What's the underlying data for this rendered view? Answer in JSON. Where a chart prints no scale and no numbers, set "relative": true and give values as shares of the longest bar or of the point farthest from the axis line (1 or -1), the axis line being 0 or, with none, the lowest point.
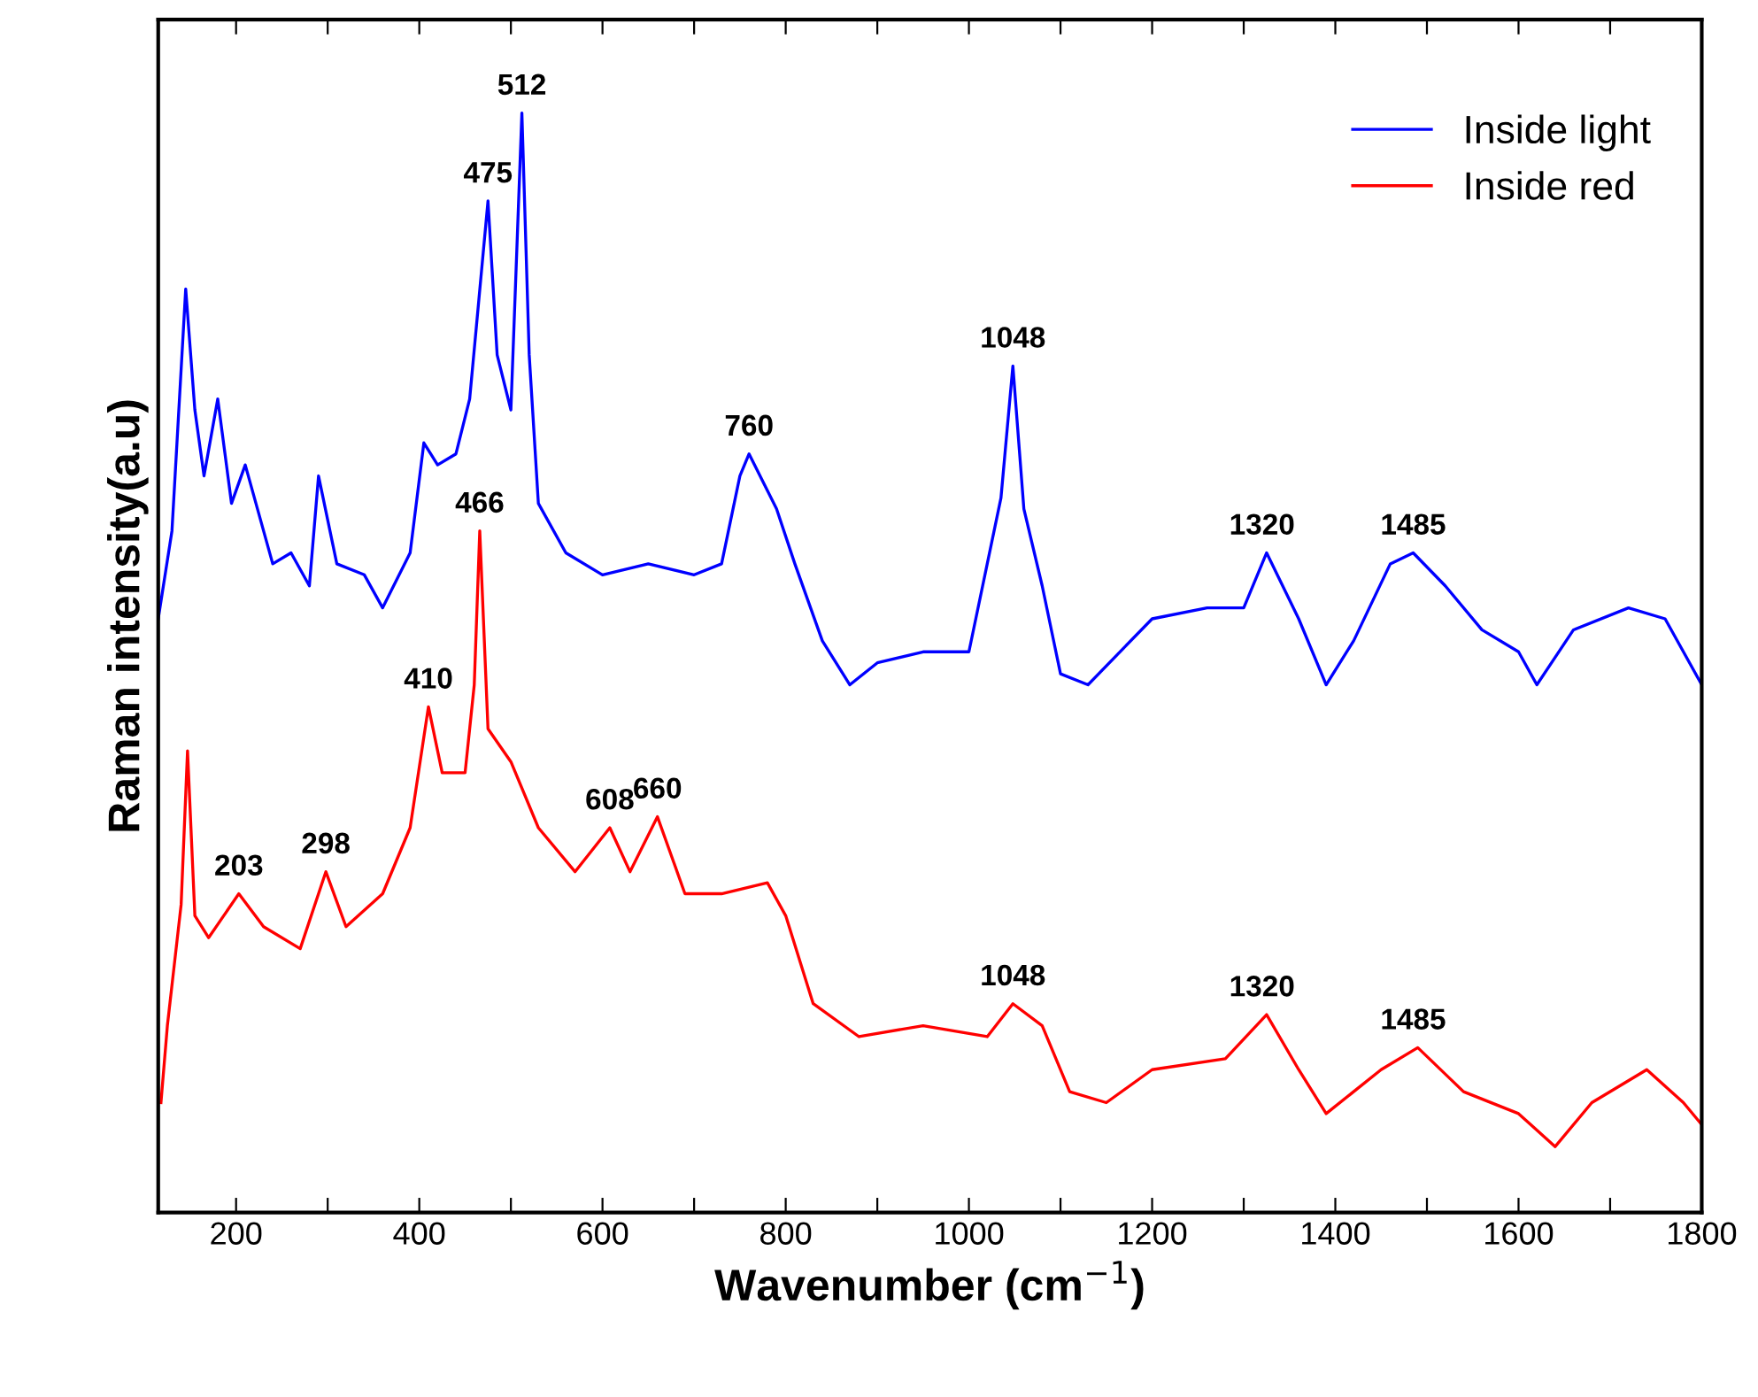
{
  "chart_data": {
    "type": "line",
    "relative": true,
    "xlabel": "Wavenumber (cm$^{−1}$)",
    "ylabel": "Raman intensity(a.u)",
    "xlim": [
      115,
      1800
    ],
    "xticks": [
      200,
      {
        "value": 300,
        "label": null
      },
      400,
      {
        "value": 500,
        "label": null
      },
      600,
      {
        "value": 700,
        "label": null
      },
      800,
      {
        "value": 900,
        "label": null
      },
      1000,
      {
        "value": 1100,
        "label": null
      },
      1200,
      {
        "value": 1300,
        "label": null
      },
      1400,
      {
        "value": 1500,
        "label": null
      },
      1600,
      {
        "value": 1700,
        "label": null
      },
      1800
    ],
    "legend": "top right",
    "grid": false,
    "series": [
      {
        "name": "Inside light",
        "color": "#0000ff",
        "x": [
          115,
          130,
          145,
          155,
          165,
          180,
          195,
          210,
          240,
          260,
          280,
          290,
          310,
          340,
          360,
          390,
          405,
          420,
          440,
          455,
          465,
          475,
          485,
          500,
          512,
          520,
          530,
          560,
          600,
          650,
          700,
          730,
          750,
          760,
          790,
          810,
          840,
          870,
          900,
          950,
          1000,
          1020,
          1035,
          1048,
          1060,
          1080,
          1100,
          1130,
          1200,
          1260,
          1300,
          1325,
          1360,
          1390,
          1420,
          1460,
          1485,
          1520,
          1560,
          1600,
          1620,
          1660,
          1720,
          1760,
          1800
        ],
        "values": [
          0.54,
          0.62,
          0.84,
          0.73,
          0.67,
          0.74,
          0.645,
          0.68,
          0.59,
          0.6,
          0.57,
          0.67,
          0.59,
          0.58,
          0.55,
          0.6,
          0.7,
          0.68,
          0.69,
          0.74,
          0.83,
          0.92,
          0.78,
          0.73,
          1.0,
          0.78,
          0.645,
          0.6,
          0.58,
          0.59,
          0.58,
          0.59,
          0.67,
          0.69,
          0.64,
          0.59,
          0.52,
          0.48,
          0.5,
          0.51,
          0.51,
          0.59,
          0.65,
          0.77,
          0.64,
          0.57,
          0.49,
          0.48,
          0.54,
          0.55,
          0.55,
          0.6,
          0.54,
          0.48,
          0.52,
          0.59,
          0.6,
          0.57,
          0.53,
          0.51,
          0.48,
          0.53,
          0.55,
          0.54,
          0.48
        ]
      },
      {
        "name": "Inside red",
        "color": "#ff0000",
        "x": [
          118,
          125,
          140,
          147,
          155,
          170,
          203,
          230,
          270,
          298,
          320,
          360,
          390,
          410,
          425,
          450,
          460,
          466,
          475,
          500,
          530,
          570,
          608,
          630,
          660,
          690,
          730,
          780,
          800,
          830,
          880,
          950,
          1020,
          1048,
          1080,
          1110,
          1150,
          1200,
          1280,
          1325,
          1360,
          1390,
          1450,
          1490,
          1540,
          1600,
          1640,
          1680,
          1740,
          1780,
          1800
        ],
        "values": [
          0.1,
          0.17,
          0.28,
          0.42,
          0.27,
          0.25,
          0.29,
          0.26,
          0.24,
          0.31,
          0.26,
          0.29,
          0.35,
          0.46,
          0.4,
          0.4,
          0.48,
          0.62,
          0.44,
          0.41,
          0.35,
          0.31,
          0.35,
          0.31,
          0.36,
          0.29,
          0.29,
          0.3,
          0.27,
          0.19,
          0.16,
          0.17,
          0.16,
          0.19,
          0.17,
          0.11,
          0.1,
          0.13,
          0.14,
          0.18,
          0.13,
          0.09,
          0.13,
          0.15,
          0.11,
          0.09,
          0.06,
          0.1,
          0.13,
          0.1,
          0.08
        ]
      }
    ],
    "annotations": [
      {
        "text": "512",
        "x": 512,
        "y": 1.0
      },
      {
        "text": "475",
        "x": 475,
        "y": 0.92
      },
      {
        "text": "760",
        "x": 760,
        "y": 0.69
      },
      {
        "text": "1048",
        "x": 1048,
        "y": 0.77
      },
      {
        "text": "1320",
        "x": 1320,
        "y": 0.6
      },
      {
        "text": "1485",
        "x": 1485,
        "y": 0.6
      },
      {
        "text": "466",
        "x": 466,
        "y": 0.62
      },
      {
        "text": "410",
        "x": 410,
        "y": 0.46
      },
      {
        "text": "203",
        "x": 203,
        "y": 0.29
      },
      {
        "text": "298",
        "x": 298,
        "y": 0.31
      },
      {
        "text": "608",
        "x": 608,
        "y": 0.35
      },
      {
        "text": "660",
        "x": 660,
        "y": 0.36
      },
      {
        "text": "1048",
        "x": 1048,
        "y": 0.19
      },
      {
        "text": "1320",
        "x": 1320,
        "y": 0.18
      },
      {
        "text": "1485",
        "x": 1485,
        "y": 0.15
      }
    ]
  }
}
